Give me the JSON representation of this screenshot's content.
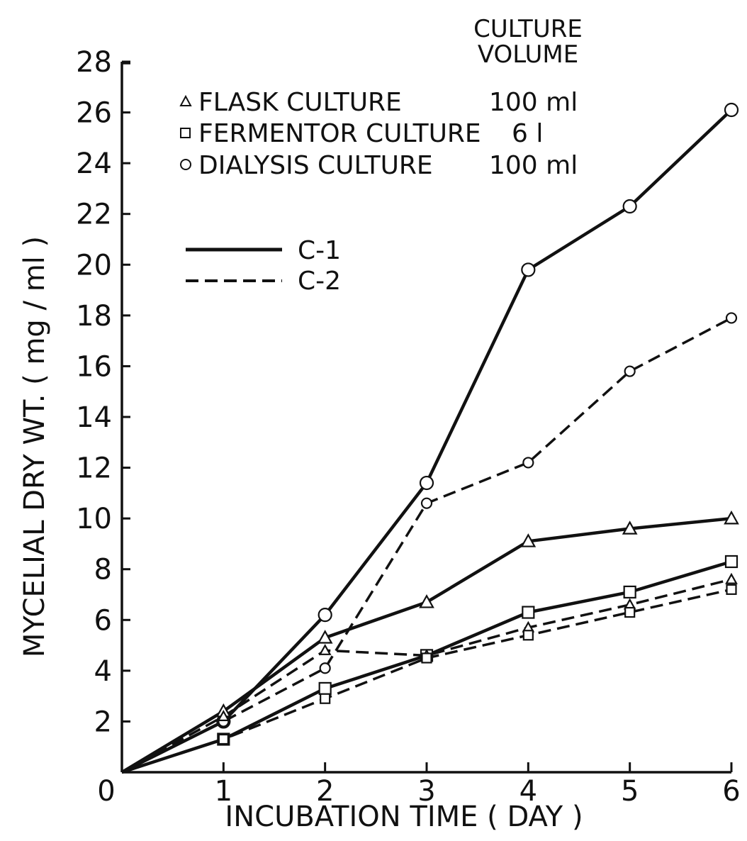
{
  "chart_data": {
    "type": "line",
    "xlabel": "INCUBATION TIME ( DAY )",
    "ylabel": "MYCELIAL DRY WT. ( mg / ml )",
    "xlim": [
      0,
      6
    ],
    "ylim": [
      0,
      28
    ],
    "x_ticks": [
      "0",
      "1",
      "2",
      "3",
      "4",
      "5",
      "6"
    ],
    "y_ticks": [
      "2",
      "4",
      "6",
      "8",
      "10",
      "12",
      "14",
      "16",
      "18",
      "20",
      "22",
      "24",
      "26",
      "28"
    ],
    "legend": {
      "header": [
        "CULTURE",
        "VOLUME"
      ],
      "entries": [
        {
          "marker": "triangle",
          "label": "FLASK CULTURE",
          "volume": "100 ml"
        },
        {
          "marker": "square",
          "label": "FERMENTOR CULTURE",
          "volume": "6 l"
        },
        {
          "marker": "circle",
          "label": "DIALYSIS CULTURE",
          "volume": "100 ml"
        }
      ],
      "line_styles": [
        {
          "style": "solid",
          "label": "C-1"
        },
        {
          "style": "dashed",
          "label": "C-2"
        }
      ]
    },
    "series": [
      {
        "culture": "DIALYSIS CULTURE",
        "strain": "C-1",
        "marker": "circle",
        "style": "solid",
        "x": [
          0,
          1,
          2,
          3,
          4,
          5,
          6
        ],
        "y": [
          0,
          2.0,
          6.2,
          11.4,
          19.8,
          22.3,
          26.1
        ]
      },
      {
        "culture": "DIALYSIS CULTURE",
        "strain": "C-2",
        "marker": "circle",
        "style": "dashed",
        "x": [
          0,
          1,
          2,
          3,
          4,
          5,
          6
        ],
        "y": [
          0,
          2.0,
          4.1,
          10.6,
          12.2,
          15.8,
          17.9
        ]
      },
      {
        "culture": "FLASK CULTURE",
        "strain": "C-1",
        "marker": "triangle",
        "style": "solid",
        "x": [
          0,
          1,
          2,
          3,
          4,
          5,
          6
        ],
        "y": [
          0,
          2.4,
          5.3,
          6.7,
          9.1,
          9.6,
          10.0
        ]
      },
      {
        "culture": "FERMENTOR CULTURE",
        "strain": "C-1",
        "marker": "square",
        "style": "solid",
        "x": [
          0,
          1,
          2,
          3,
          4,
          5,
          6
        ],
        "y": [
          0,
          1.3,
          3.3,
          4.6,
          6.3,
          7.1,
          8.3
        ]
      },
      {
        "culture": "FLASK CULTURE",
        "strain": "C-2",
        "marker": "triangle",
        "style": "dashed",
        "x": [
          0,
          1,
          2,
          3,
          4,
          5,
          6
        ],
        "y": [
          0,
          2.2,
          4.8,
          4.6,
          5.7,
          6.6,
          7.6
        ]
      },
      {
        "culture": "FERMENTOR CULTURE",
        "strain": "C-2",
        "marker": "square",
        "style": "dashed",
        "x": [
          0,
          1,
          2,
          3,
          4,
          5,
          6
        ],
        "y": [
          0,
          1.3,
          2.9,
          4.5,
          5.4,
          6.3,
          7.2
        ]
      }
    ]
  }
}
